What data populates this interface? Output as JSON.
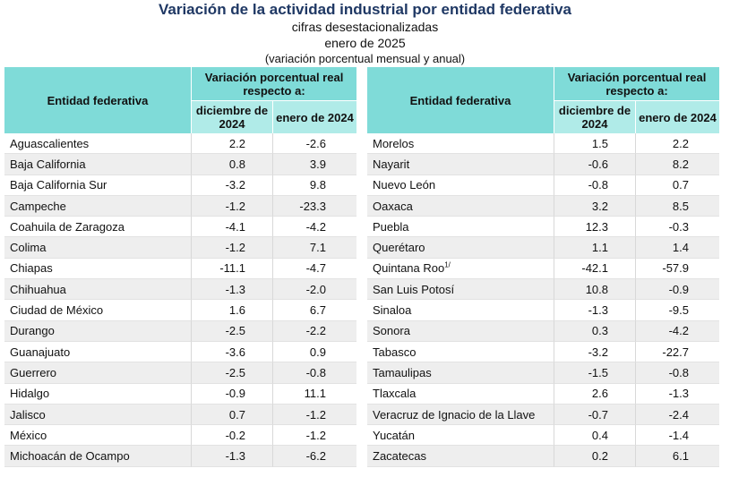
{
  "title": "Variación de la actividad industrial por entidad federativa",
  "subtitle1": "cifras desestacionalizadas",
  "subtitle2": "enero de 2025",
  "subtitle3": "(variación porcentual mensual y anual)",
  "header": {
    "entidad": "Entidad federativa",
    "variacion": "Variación porcentual real respecto a:",
    "col1": "diciembre de 2024",
    "col2": "enero de 2024"
  },
  "left_rows": [
    {
      "name": "Aguascalientes",
      "v1": "2.2",
      "v2": "-2.6"
    },
    {
      "name": "Baja California",
      "v1": "0.8",
      "v2": "3.9"
    },
    {
      "name": "Baja California Sur",
      "v1": "-3.2",
      "v2": "9.8"
    },
    {
      "name": "Campeche",
      "v1": "-1.2",
      "v2": "-23.3"
    },
    {
      "name": "Coahuila de Zaragoza",
      "v1": "-4.1",
      "v2": "-4.2"
    },
    {
      "name": "Colima",
      "v1": "-1.2",
      "v2": "7.1"
    },
    {
      "name": "Chiapas",
      "v1": "-11.1",
      "v2": "-4.7"
    },
    {
      "name": "Chihuahua",
      "v1": "-1.3",
      "v2": "-2.0"
    },
    {
      "name": "Ciudad de México",
      "v1": "1.6",
      "v2": "6.7"
    },
    {
      "name": "Durango",
      "v1": "-2.5",
      "v2": "-2.2"
    },
    {
      "name": "Guanajuato",
      "v1": "-3.6",
      "v2": "0.9"
    },
    {
      "name": "Guerrero",
      "v1": "-2.5",
      "v2": "-0.8"
    },
    {
      "name": "Hidalgo",
      "v1": "-0.9",
      "v2": "11.1"
    },
    {
      "name": "Jalisco",
      "v1": "0.7",
      "v2": "-1.2"
    },
    {
      "name": "México",
      "v1": "-0.2",
      "v2": "-1.2"
    },
    {
      "name": "Michoacán de Ocampo",
      "v1": "-1.3",
      "v2": "-6.2"
    }
  ],
  "right_rows": [
    {
      "name": "Morelos",
      "v1": "1.5",
      "v2": "2.2"
    },
    {
      "name": "Nayarit",
      "v1": "-0.6",
      "v2": "8.2"
    },
    {
      "name": "Nuevo León",
      "v1": "-0.8",
      "v2": "0.7"
    },
    {
      "name": "Oaxaca",
      "v1": "3.2",
      "v2": "8.5"
    },
    {
      "name": "Puebla",
      "v1": "12.3",
      "v2": "-0.3"
    },
    {
      "name": "Querétaro",
      "v1": "1.1",
      "v2": "1.4"
    },
    {
      "name": "Quintana Roo",
      "sup": "1/",
      "v1": "-42.1",
      "v2": "-57.9"
    },
    {
      "name": "San Luis Potosí",
      "v1": "10.8",
      "v2": "-0.9"
    },
    {
      "name": "Sinaloa",
      "v1": "-1.3",
      "v2": "-9.5"
    },
    {
      "name": "Sonora",
      "v1": "0.3",
      "v2": "-4.2"
    },
    {
      "name": "Tabasco",
      "v1": "-3.2",
      "v2": "-22.7"
    },
    {
      "name": "Tamaulipas",
      "v1": "-1.5",
      "v2": "-0.8"
    },
    {
      "name": "Tlaxcala",
      "v1": "2.6",
      "v2": "-1.3"
    },
    {
      "name": "Veracruz de Ignacio de la Llave",
      "v1": "-0.7",
      "v2": "-2.4"
    },
    {
      "name": "Yucatán",
      "v1": "0.4",
      "v2": "-1.4"
    },
    {
      "name": "Zacatecas",
      "v1": "0.2",
      "v2": "6.1"
    }
  ]
}
